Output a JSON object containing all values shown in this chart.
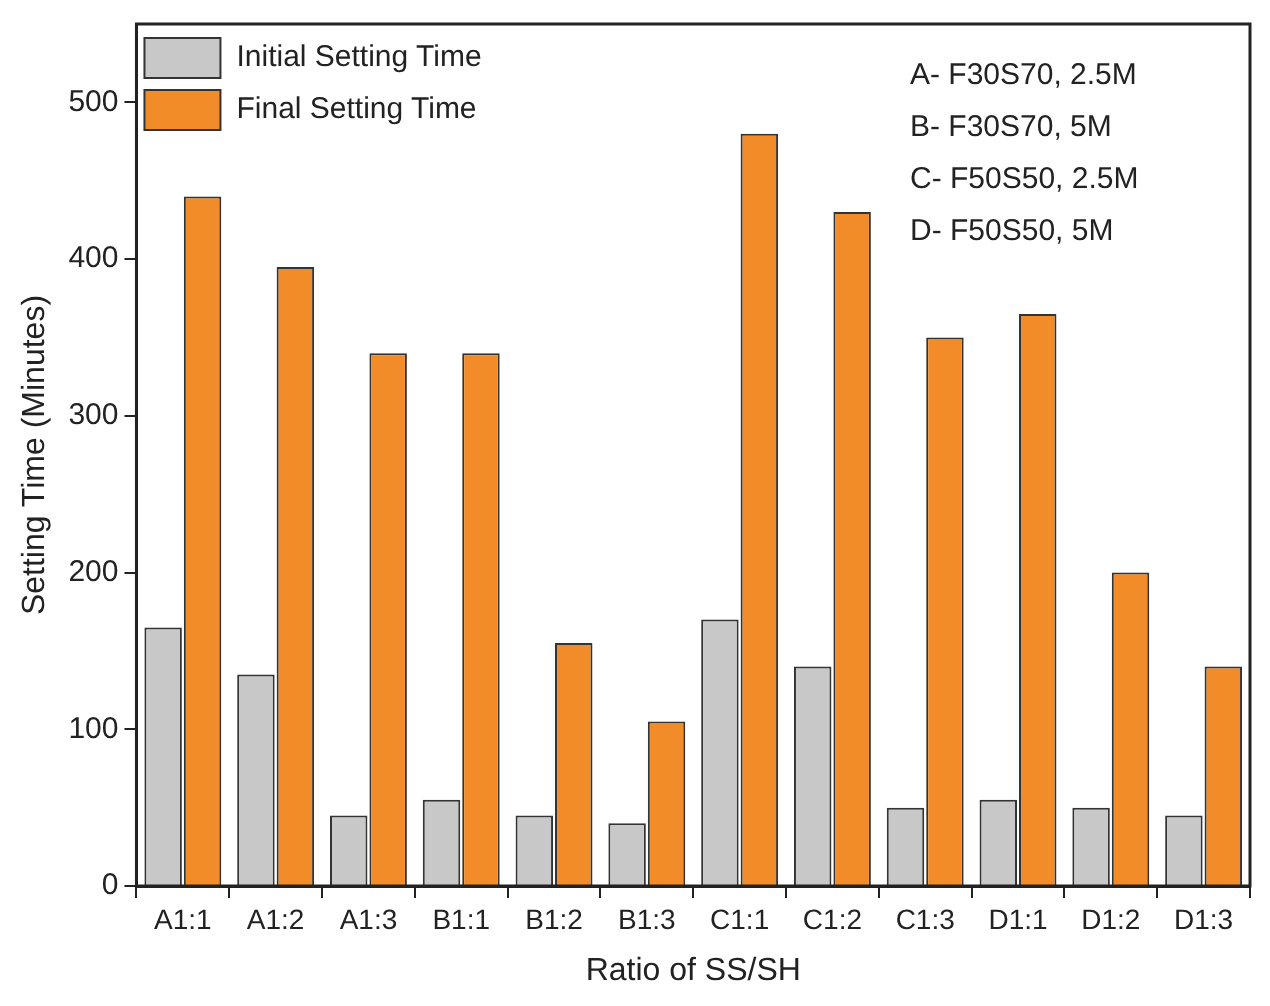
{
  "chart_data": {
    "type": "bar",
    "xlabel": "Ratio of SS/SH",
    "ylabel": "Setting Time (Minutes)",
    "categories": [
      "A1:1",
      "A1:2",
      "A1:3",
      "B1:1",
      "B1:2",
      "B1:3",
      "C1:1",
      "C1:2",
      "C1:3",
      "D1:1",
      "D1:2",
      "D1:3"
    ],
    "series": [
      {
        "name": "Initial Setting Time",
        "color": "#c8c8c8",
        "values": [
          165,
          135,
          45,
          55,
          45,
          40,
          170,
          140,
          50,
          55,
          50,
          45
        ]
      },
      {
        "name": "Final Setting Time",
        "color": "#f28c28",
        "values": [
          440,
          395,
          340,
          340,
          155,
          105,
          480,
          430,
          350,
          365,
          200,
          140
        ]
      }
    ],
    "ylim": [
      0,
      550
    ],
    "yticks": [
      0,
      100,
      200,
      300,
      400,
      500
    ],
    "grid": false,
    "legend": "top left",
    "annotations": [
      "A- F30S70, 2.5M",
      "B- F30S70, 5M",
      "C- F50S50, 2.5M",
      "D- F50S50, 5M"
    ]
  }
}
